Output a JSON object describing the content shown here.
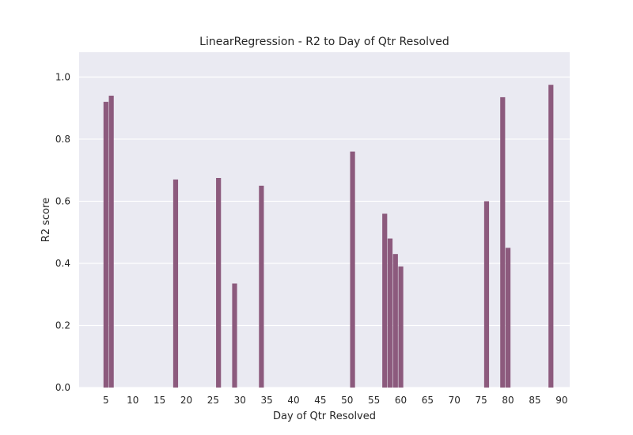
{
  "chart_data": {
    "type": "bar",
    "title": "LinearRegression - R2 to Day of Qtr Resolved",
    "xlabel": "Day of Qtr Resolved",
    "ylabel": "R2 score",
    "x": [
      5,
      6,
      18,
      26,
      29,
      34,
      51,
      57,
      58,
      59,
      60,
      76,
      79,
      80,
      88
    ],
    "values": [
      0.92,
      0.94,
      0.67,
      0.675,
      0.335,
      0.65,
      0.76,
      0.56,
      0.48,
      0.43,
      0.39,
      0.6,
      0.935,
      0.45,
      0.975
    ],
    "xticks": [
      "5",
      "10",
      "15",
      "20",
      "25",
      "30",
      "35",
      "40",
      "45",
      "50",
      "55",
      "60",
      "65",
      "70",
      "75",
      "80",
      "85",
      "90"
    ],
    "yticks": [
      "0.0",
      "0.2",
      "0.4",
      "0.6",
      "0.8",
      "1.0"
    ],
    "ylim": [
      0,
      1.08
    ],
    "grid": true,
    "colors": {
      "bar": "#8c5a7d",
      "plot_background": "#eaeaf2",
      "grid": "#ffffff"
    }
  }
}
